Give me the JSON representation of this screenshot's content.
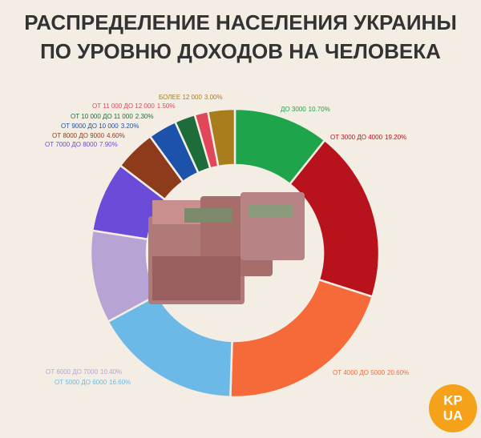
{
  "chart_data": {
    "type": "donut",
    "title": [
      "РАСПРЕДЕЛЕНИЕ НАСЕЛЕНИЯ УКРАИНЫ",
      "ПО УРОВНЮ ДОХОДОВ НА ЧЕЛОВЕКА"
    ],
    "categories": [
      "ДО 3000",
      "ОТ 3000 ДО 4000",
      "ОТ 4000 ДО 5000",
      "ОТ 5000 ДО 6000",
      "ОТ 6000 ДО 7000",
      "ОТ 7000 ДО 8000",
      "ОТ 8000 ДО 9000",
      "ОТ 9000 ДО 10 000",
      "ОТ 10 000 ДО 11 000",
      "ОТ 11 000 ДО 12 000",
      "БОЛЕЕ 12 000"
    ],
    "values": [
      10.7,
      19.2,
      20.6,
      16.6,
      10.4,
      7.9,
      4.6,
      3.2,
      2.3,
      1.5,
      3.0
    ],
    "value_labels": [
      "10.70%",
      "19.20%",
      "20.60%",
      "16.60%",
      "10.40%",
      "7.90%",
      "4.60%",
      "3.20%",
      "2.30%",
      "1.50%",
      "3.00%"
    ],
    "colors": [
      "#1ea54c",
      "#b8121c",
      "#f56a38",
      "#6cb9e8",
      "#b7a3d4",
      "#6a4cd8",
      "#8e3b1b",
      "#1d52aa",
      "#1f6c3b",
      "#e2465b",
      "#a97d1c"
    ]
  },
  "logo": {
    "lines": [
      "KP",
      "UA"
    ]
  }
}
